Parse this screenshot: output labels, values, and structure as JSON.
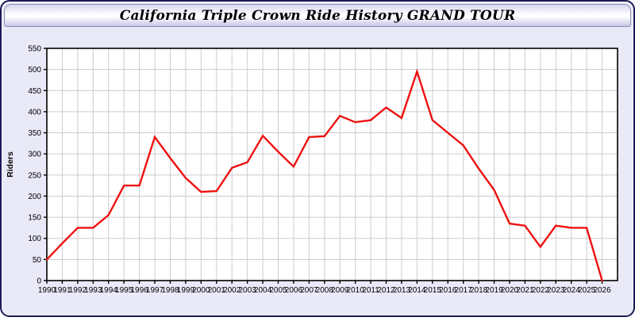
{
  "window": {
    "border_color": "#1a1a55",
    "body_background": "#e9e9f8"
  },
  "chart_data": {
    "type": "line",
    "title": "California Triple Crown Ride History GRAND TOUR",
    "xlabel": "",
    "ylabel": "Riders",
    "ylim": [
      0,
      550
    ],
    "ytick_step": 50,
    "grid": true,
    "legend": "none",
    "line_color": "#ee1111",
    "grid_color": "#cccccc",
    "plot_background": "#ffffff",
    "axis_color": "#000000",
    "x": [
      1990,
      1991,
      1992,
      1993,
      1994,
      1995,
      1996,
      1997,
      1998,
      1999,
      2000,
      2001,
      2002,
      2003,
      2004,
      2005,
      2006,
      2007,
      2008,
      2009,
      2010,
      2011,
      2012,
      2013,
      2014,
      2015,
      2016,
      2017,
      2018,
      2019,
      2020,
      2021,
      2022,
      2023,
      2024,
      2025,
      2026
    ],
    "values": [
      50,
      88,
      125,
      125,
      155,
      225,
      225,
      340,
      290,
      243,
      210,
      212,
      267,
      280,
      343,
      305,
      270,
      340,
      342,
      390,
      375,
      380,
      410,
      385,
      495,
      380,
      350,
      320,
      265,
      215,
      135,
      130,
      80,
      130,
      125,
      125,
      0
    ]
  }
}
